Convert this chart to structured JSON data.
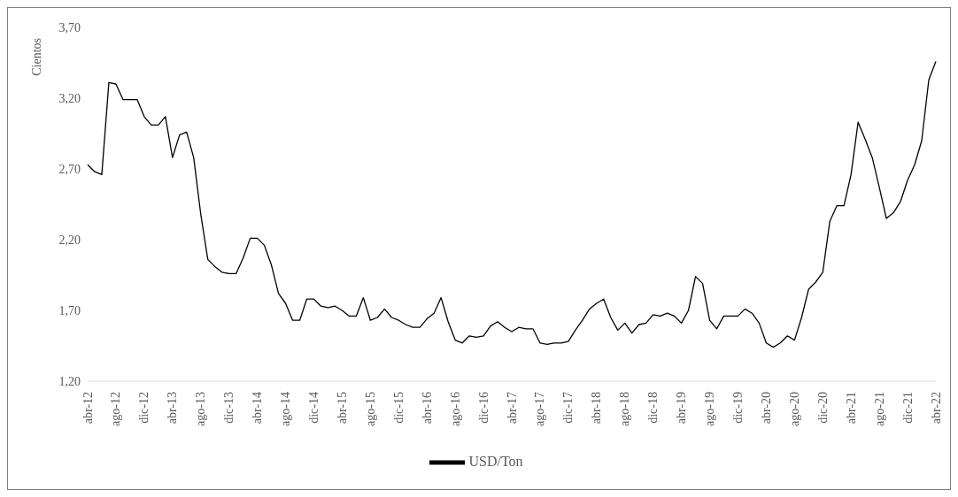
{
  "chart_data": {
    "type": "line",
    "ylabel": "Cientos",
    "legend": "bottom",
    "grid": false,
    "marker": "none",
    "line_style": "solid",
    "categories": [
      "abr-12",
      null,
      null,
      null,
      "ago-12",
      null,
      null,
      null,
      "dic-12",
      null,
      null,
      null,
      "abr-13",
      null,
      null,
      null,
      "ago-13",
      null,
      null,
      null,
      "dic-13",
      null,
      null,
      null,
      "abr-14",
      null,
      null,
      null,
      "ago-14",
      null,
      null,
      null,
      "dic-14",
      null,
      null,
      null,
      "abr-15",
      null,
      null,
      null,
      "ago-15",
      null,
      null,
      null,
      "dic-15",
      null,
      null,
      null,
      "abr-16",
      null,
      null,
      null,
      "ago-16",
      null,
      null,
      null,
      "dic-16",
      null,
      null,
      null,
      "abr-17",
      null,
      null,
      null,
      "ago-17",
      null,
      null,
      null,
      "dic-17",
      null,
      null,
      null,
      "abr-18",
      null,
      null,
      null,
      "ago-18",
      null,
      null,
      null,
      "dic-18",
      null,
      null,
      null,
      "abr-19",
      null,
      null,
      null,
      "ago-19",
      null,
      null,
      null,
      "dic-19",
      null,
      null,
      null,
      "abr-20",
      null,
      null,
      null,
      "ago-20",
      null,
      null,
      null,
      "dic-20",
      null,
      null,
      null,
      "abr-21",
      null,
      null,
      null,
      "ago-21",
      null,
      null,
      null,
      "dic-21",
      null,
      null,
      null,
      "abr-22"
    ],
    "series": [
      {
        "name": "USD/Ton",
        "color": "#000000",
        "values": [
          2.73,
          2.68,
          2.66,
          3.31,
          3.3,
          3.19,
          3.19,
          3.19,
          3.07,
          3.01,
          3.01,
          3.07,
          2.78,
          2.94,
          2.96,
          2.78,
          2.38,
          2.06,
          2.01,
          1.97,
          1.96,
          1.96,
          2.07,
          2.21,
          2.21,
          2.16,
          2.02,
          1.82,
          1.75,
          1.63,
          1.63,
          1.78,
          1.78,
          1.73,
          1.72,
          1.73,
          1.7,
          1.66,
          1.66,
          1.79,
          1.63,
          1.65,
          1.71,
          1.65,
          1.63,
          1.6,
          1.58,
          1.58,
          1.64,
          1.68,
          1.79,
          1.62,
          1.49,
          1.47,
          1.52,
          1.51,
          1.52,
          1.59,
          1.62,
          1.58,
          1.55,
          1.58,
          1.57,
          1.57,
          1.47,
          1.46,
          1.47,
          1.47,
          1.48,
          1.56,
          1.63,
          1.71,
          1.75,
          1.78,
          1.65,
          1.56,
          1.61,
          1.54,
          1.6,
          1.61,
          1.67,
          1.66,
          1.68,
          1.66,
          1.61,
          1.7,
          1.94,
          1.89,
          1.63,
          1.57,
          1.66,
          1.66,
          1.66,
          1.71,
          1.68,
          1.61,
          1.47,
          1.44,
          1.47,
          1.52,
          1.49,
          1.65,
          1.85,
          1.9,
          1.97,
          2.33,
          2.44,
          2.44,
          2.66,
          3.03,
          2.91,
          2.78,
          2.57,
          2.35,
          2.39,
          2.47,
          2.62,
          2.73,
          2.9,
          3.33,
          3.46
        ]
      }
    ],
    "ylim": [
      1.2,
      3.7
    ],
    "yticks": [
      {
        "value": 1.2,
        "label": "1,20"
      },
      {
        "value": 1.7,
        "label": "1,70"
      },
      {
        "value": 2.2,
        "label": "2,20"
      },
      {
        "value": 2.7,
        "label": "2,70"
      },
      {
        "value": 3.2,
        "label": "3,20"
      },
      {
        "value": 3.7,
        "label": "3,70"
      }
    ]
  }
}
